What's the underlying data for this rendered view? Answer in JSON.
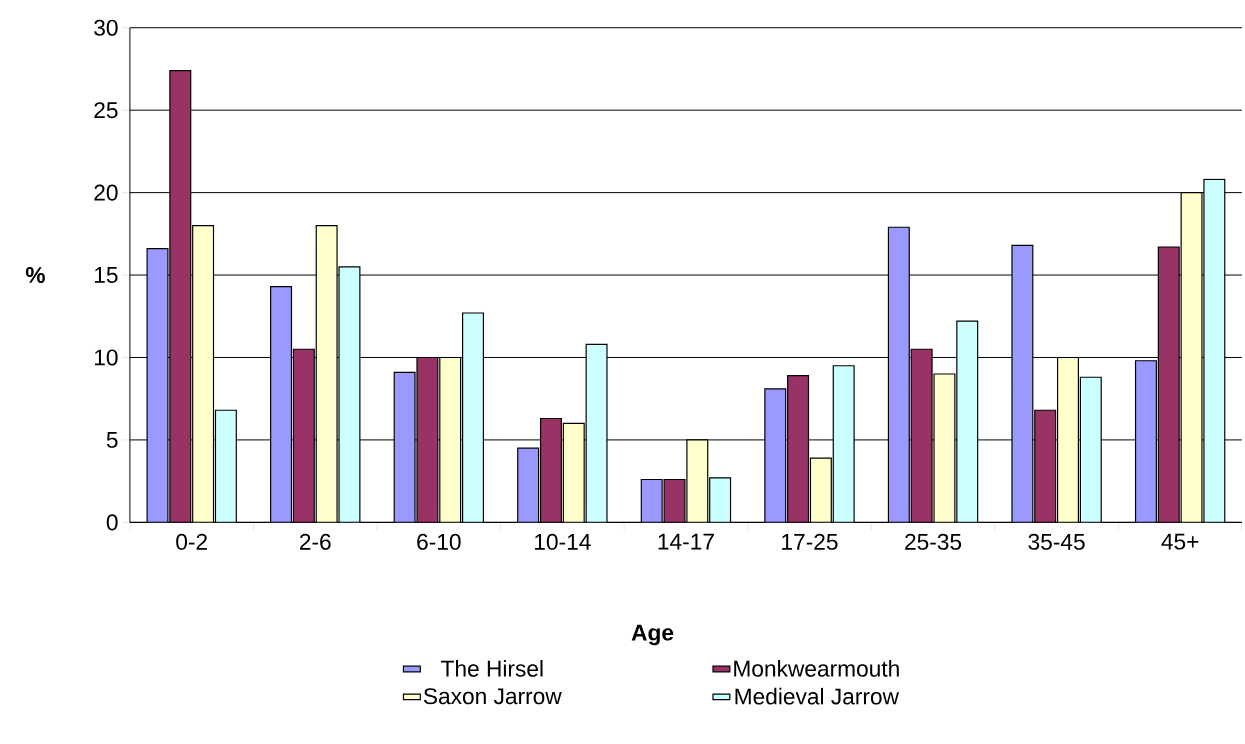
{
  "chart_data": {
    "type": "bar",
    "xlabel": "Age",
    "ylabel": "%",
    "categories": [
      "0-2",
      "2-6",
      "6-10",
      "10-14",
      "14-17",
      "17-25",
      "25-35",
      "35-45",
      "45+"
    ],
    "series": [
      {
        "name": "The Hirsel",
        "color": "#9999ff",
        "values": [
          16.6,
          14.3,
          9.1,
          4.5,
          2.6,
          8.1,
          17.9,
          16.8,
          9.8
        ]
      },
      {
        "name": "Monkwearmouth",
        "color": "#993366",
        "values": [
          27.4,
          10.5,
          10,
          6.3,
          2.6,
          8.9,
          10.5,
          6.8,
          16.7
        ]
      },
      {
        "name": "Saxon Jarrow",
        "color": "#ffffcc",
        "values": [
          18,
          18,
          10,
          6,
          5,
          3.9,
          9,
          10,
          20
        ]
      },
      {
        "name": "Medieval Jarrow",
        "color": "#ccffff",
        "values": [
          6.8,
          15.5,
          12.7,
          10.8,
          2.7,
          9.5,
          12.2,
          8.8,
          20.8
        ]
      }
    ],
    "ylim": [
      0,
      30
    ],
    "yticks": [
      0,
      5,
      10,
      15,
      20,
      25,
      30
    ],
    "grid": "y",
    "legend": "bottom"
  }
}
